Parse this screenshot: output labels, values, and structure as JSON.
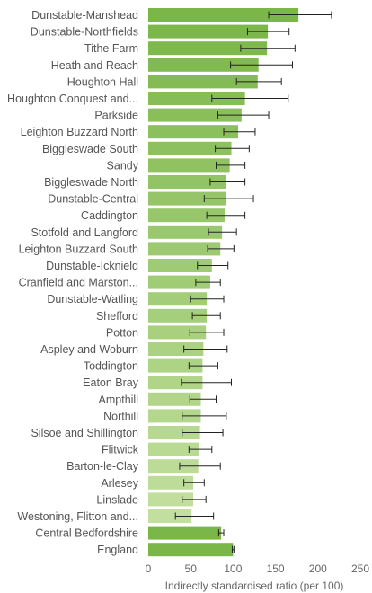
{
  "chart_data": {
    "type": "bar",
    "orientation": "horizontal",
    "xlabel": "Indirectly standardised ratio (per 100)",
    "ylabel": "",
    "title": "",
    "xlim": [
      0,
      250
    ],
    "xticks": [
      0,
      50,
      100,
      150,
      200,
      250
    ],
    "grid": false,
    "error_bars": true,
    "categories": [
      "Dunstable-Manshead",
      "Dunstable-Northfields",
      "Tithe Farm",
      "Heath and Reach",
      "Houghton Hall",
      "Houghton Conquest and...",
      "Parkside",
      "Leighton Buzzard North",
      "Biggleswade South",
      "Sandy",
      "Biggleswade North",
      "Dunstable-Central",
      "Caddington",
      "Stotfold and Langford",
      "Leighton Buzzard South",
      "Dunstable-Icknield",
      "Cranfield and Marston...",
      "Dunstable-Watling",
      "Shefford",
      "Potton",
      "Aspley and Woburn",
      "Toddington",
      "Eaton Bray",
      "Ampthill",
      "Northill",
      "Silsoe and Shillington",
      "Flitwick",
      "Barton-le-Clay",
      "Arlesey",
      "Linslade",
      "Westoning, Flitton and...",
      "Central Bedfordshire",
      "England"
    ],
    "values": [
      177,
      141,
      140,
      130,
      129,
      114,
      110,
      106,
      98,
      96,
      92,
      92,
      90,
      87,
      85,
      75,
      73,
      69,
      69,
      68,
      65,
      64,
      64,
      62,
      62,
      61,
      60,
      59,
      53,
      53,
      51,
      86,
      100
    ],
    "lower": [
      142,
      117,
      109,
      97,
      104,
      75,
      82,
      89,
      79,
      80,
      73,
      66,
      69,
      71,
      70,
      58,
      56,
      50,
      52,
      49,
      42,
      48,
      39,
      49,
      40,
      40,
      48,
      37,
      42,
      40,
      32,
      83,
      99
    ],
    "upper": [
      216,
      166,
      173,
      170,
      157,
      165,
      142,
      126,
      119,
      114,
      114,
      124,
      114,
      104,
      101,
      94,
      85,
      89,
      85,
      89,
      93,
      82,
      98,
      80,
      92,
      88,
      75,
      85,
      66,
      68,
      77,
      89,
      101
    ],
    "colors": {
      "dark": "#7ab648",
      "light": "#c3df9f",
      "error_bar": "#222222",
      "axis_text": "#666666",
      "label_text": "#555555"
    }
  }
}
